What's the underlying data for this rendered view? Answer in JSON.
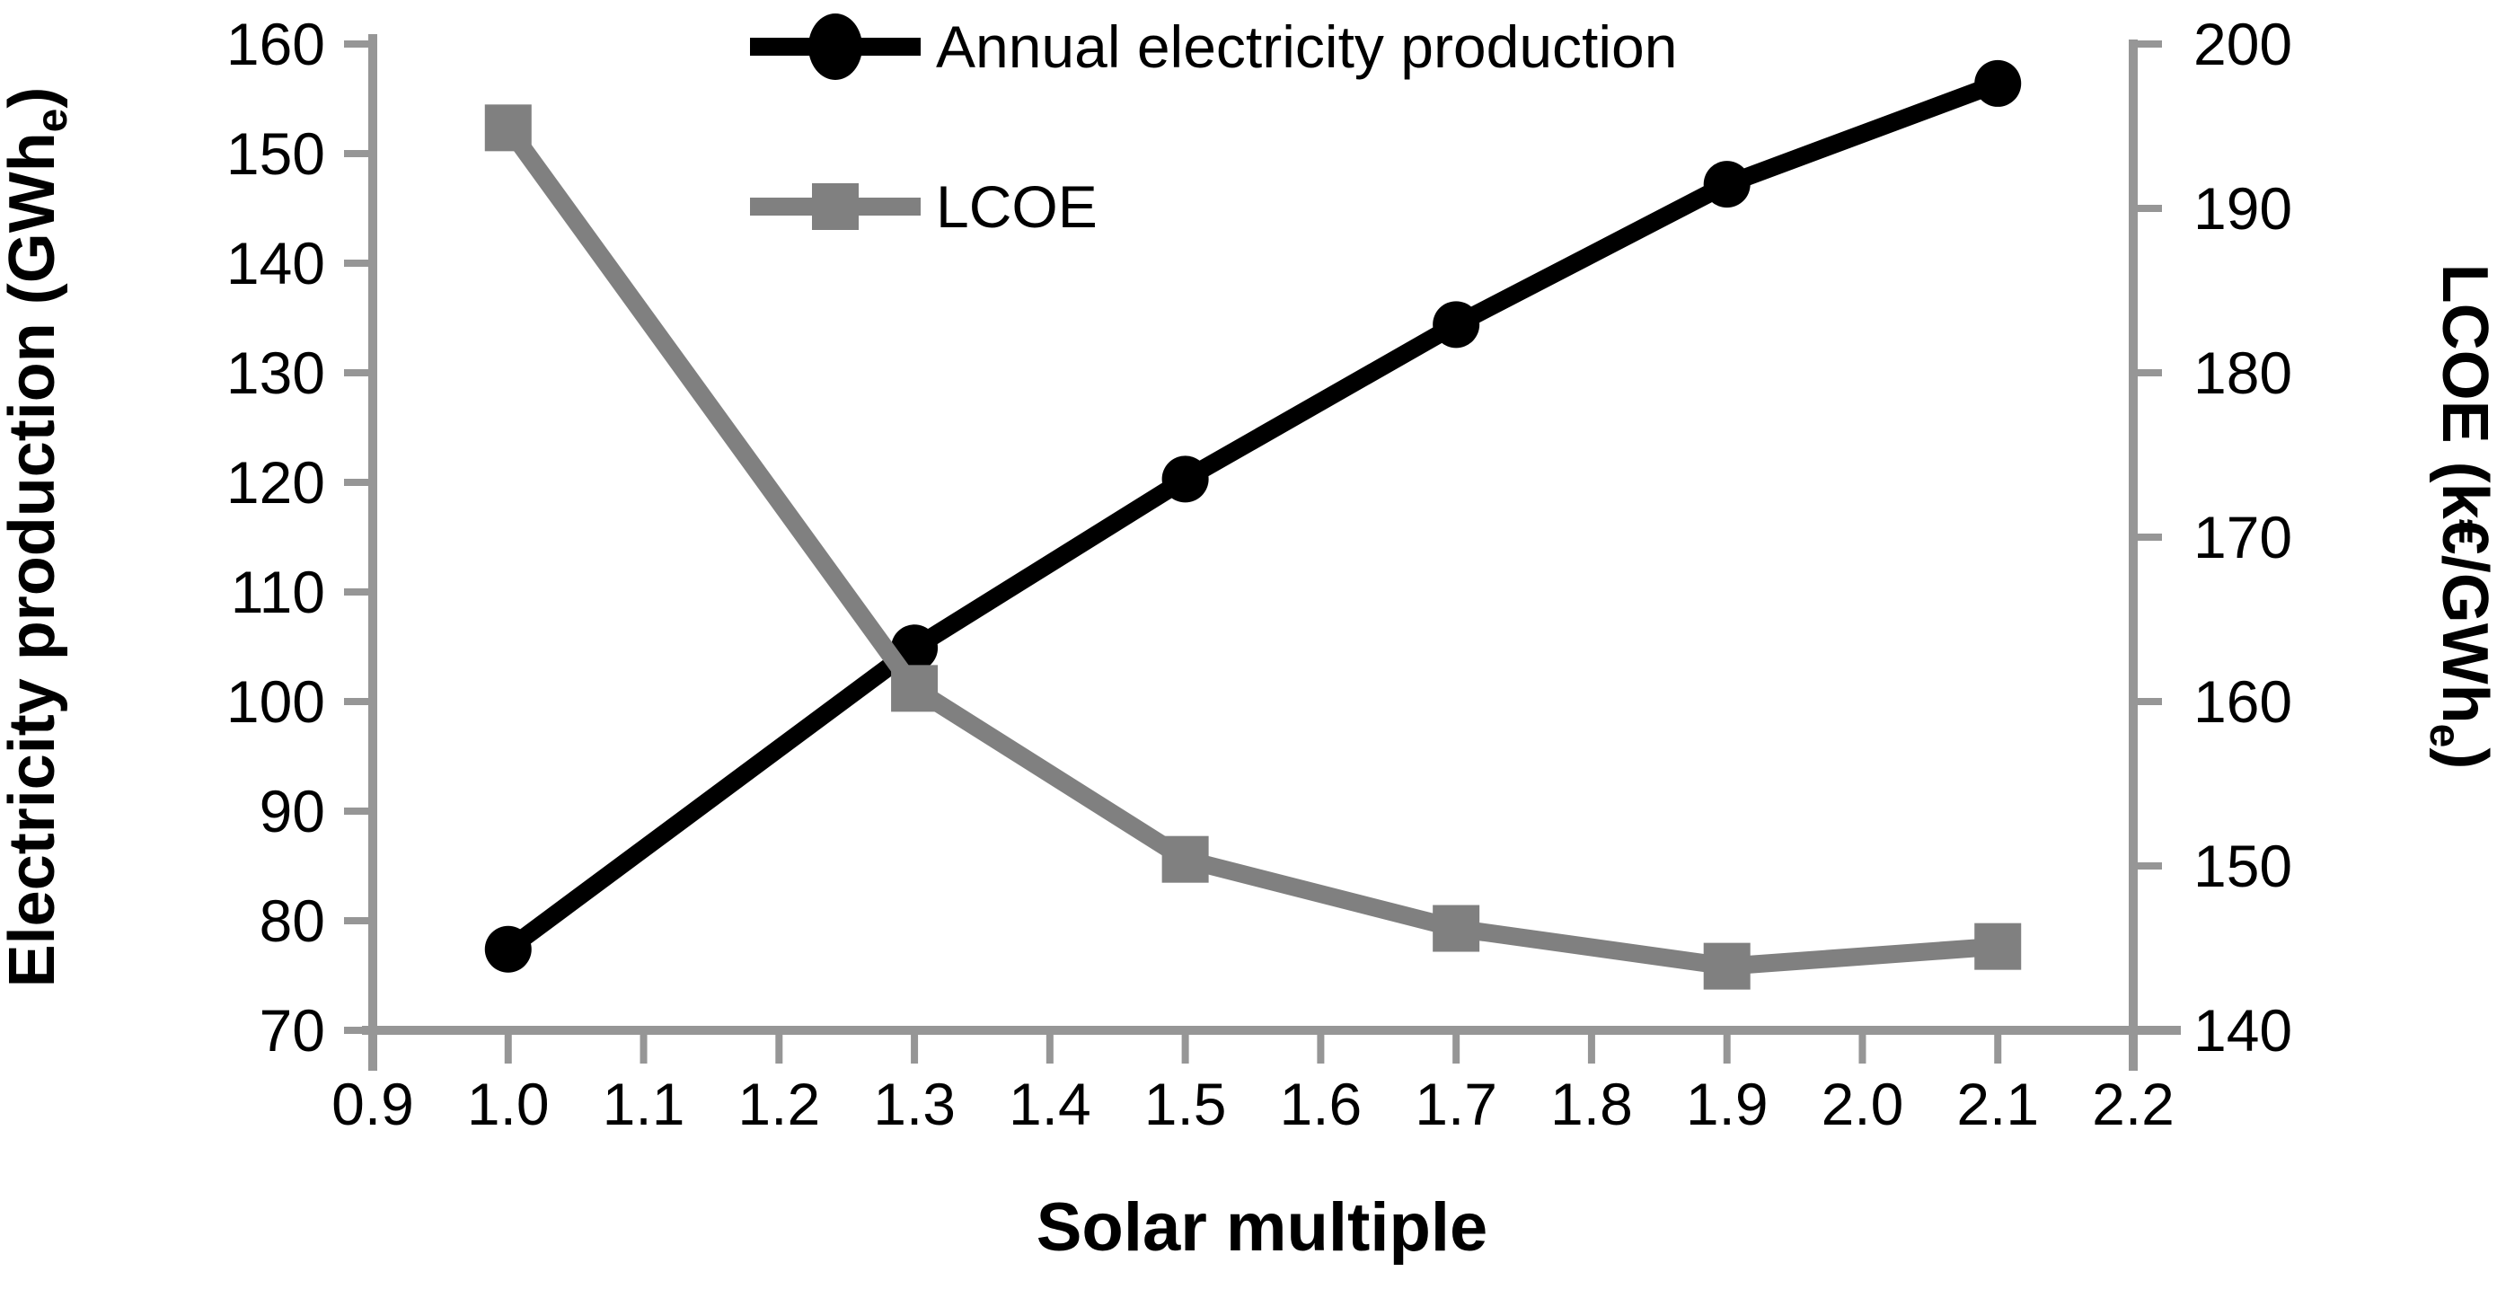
{
  "chart_data": {
    "type": "line",
    "title": "",
    "xlabel": "Solar multiple",
    "xlim": [
      0.9,
      2.2
    ],
    "x_ticks": [
      "0.9",
      "1.0",
      "1.1",
      "1.2",
      "1.3",
      "1.4",
      "1.5",
      "1.6",
      "1.7",
      "1.8",
      "1.9",
      "2.0",
      "2.1",
      "2.2"
    ],
    "x": [
      1.0,
      1.3,
      1.5,
      1.7,
      1.9,
      2.1
    ],
    "series": [
      {
        "name": "Annual electricity production",
        "axis": "left",
        "color": "#000000",
        "marker": "circle",
        "values": [
          77.4,
          104.9,
          120.3,
          134.4,
          147.2,
          156.4
        ]
      },
      {
        "name": "LCOE",
        "axis": "right",
        "color": "#808080",
        "marker": "square",
        "values": [
          194.9,
          160.8,
          150.4,
          146.2,
          143.9,
          145.1
        ]
      }
    ],
    "axes": {
      "left": {
        "label_main": "Electricity production (GWh",
        "label_sub": "e",
        "label_close": ")",
        "min": 70,
        "max": 160,
        "ticks": [
          70,
          80,
          90,
          100,
          110,
          120,
          130,
          140,
          150,
          160
        ]
      },
      "right": {
        "label_main": "LCOE (k€/GWh",
        "label_sub": "e",
        "label_close": ")",
        "min": 140,
        "max": 200,
        "ticks": [
          140,
          150,
          160,
          170,
          180,
          190,
          200
        ]
      }
    },
    "legend_position": "top-center",
    "grid": false
  },
  "colors": {
    "background": "#FFFFFF",
    "axis": "#969696",
    "text": "#000000",
    "series_production": "#000000",
    "series_lcoe": "#808080"
  }
}
